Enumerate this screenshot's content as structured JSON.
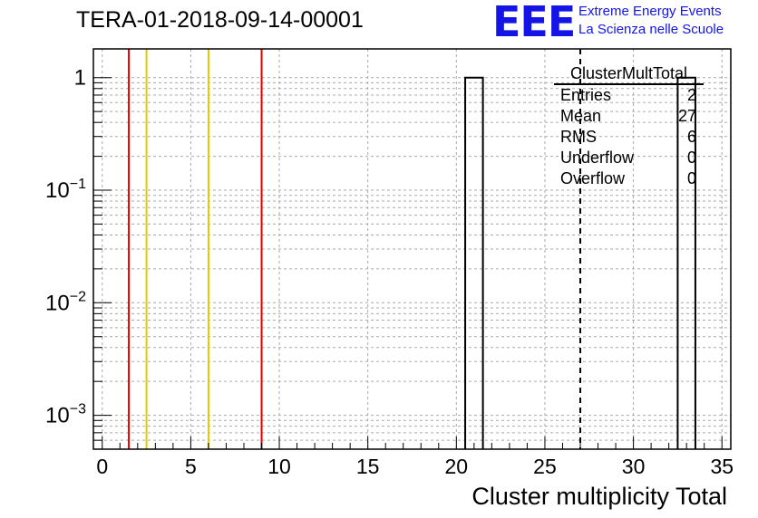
{
  "title": "TERA-01-2018-09-14-00001",
  "logo": {
    "mark": "EEE",
    "line1": "Extreme Energy Events",
    "line2": "La Scienza nelle Scuole"
  },
  "stats_box": {
    "name": "ClusterMultTotal",
    "rows": [
      {
        "label": "Entries",
        "value": "2"
      },
      {
        "label": "Mean",
        "value": "27"
      },
      {
        "label": "RMS",
        "value": "6"
      },
      {
        "label": "Underflow",
        "value": "0"
      },
      {
        "label": "Overflow",
        "value": "0"
      }
    ]
  },
  "chart_data": {
    "type": "bar",
    "xlabel": "Cluster multiplicity Total",
    "ylabel": "",
    "xlim": [
      -0.5,
      35.5
    ],
    "ylim": [
      0.0005,
      1.8
    ],
    "yscale": "log",
    "grid": true,
    "xticks": [
      0,
      5,
      10,
      15,
      20,
      25,
      30,
      35
    ],
    "yticks": [
      {
        "value": 1,
        "label": "1",
        "exp": ""
      },
      {
        "value": 0.1,
        "label": "10",
        "exp": "−1"
      },
      {
        "value": 0.01,
        "label": "10",
        "exp": "−2"
      },
      {
        "value": 0.001,
        "label": "10",
        "exp": "−3"
      }
    ],
    "bins": [
      {
        "low": 20.5,
        "high": 21.5,
        "value": 1
      },
      {
        "low": 32.5,
        "high": 33.5,
        "value": 1
      }
    ],
    "vlines": [
      {
        "x": 1.5,
        "color": "#e60000",
        "style": "solid"
      },
      {
        "x": 2.5,
        "color": "#e6c800",
        "style": "solid"
      },
      {
        "x": 6.0,
        "color": "#e6c800",
        "style": "solid"
      },
      {
        "x": 9.0,
        "color": "#e60000",
        "style": "solid"
      },
      {
        "x": 27.0,
        "color": "#000000",
        "style": "dashed"
      }
    ]
  }
}
